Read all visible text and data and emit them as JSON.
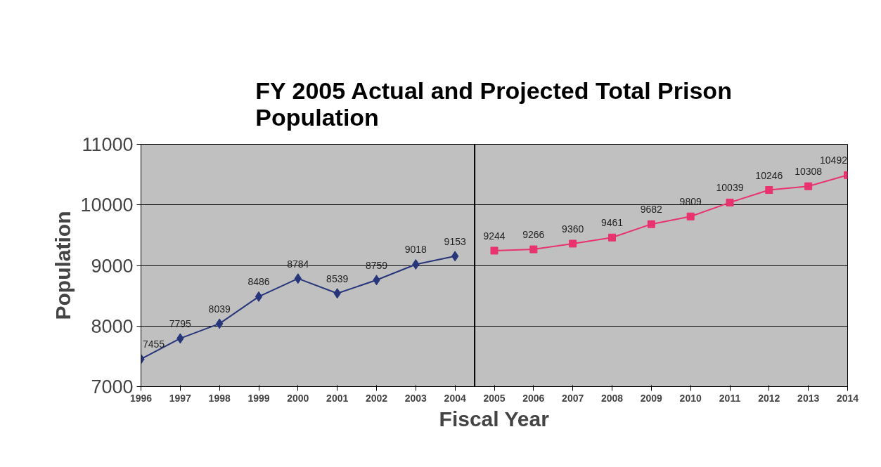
{
  "chart_data": {
    "type": "line",
    "title": "FY 2005 Actual and Projected Total Prison Population",
    "xlabel": "Fiscal Year",
    "ylabel": "Population",
    "series": [
      {
        "color": "#27357a",
        "marker": "diamond",
        "x": [
          1996,
          1997,
          1998,
          1999,
          2000,
          2001,
          2002,
          2003,
          2004
        ],
        "values": [
          7455,
          7795,
          8039,
          8486,
          8784,
          8539,
          8759,
          9018,
          9153
        ]
      },
      {
        "color": "#e8336e",
        "marker": "square",
        "x": [
          2005,
          2006,
          2007,
          2008,
          2009,
          2010,
          2011,
          2012,
          2013,
          2014
        ],
        "values": [
          9244,
          9266,
          9360,
          9461,
          9682,
          9809,
          10039,
          10246,
          10308,
          10492
        ]
      }
    ],
    "xlim": [
      1996,
      2014
    ],
    "xticks": [
      1996,
      1997,
      1998,
      1999,
      2000,
      2001,
      2002,
      2003,
      2004,
      2005,
      2006,
      2007,
      2008,
      2009,
      2010,
      2011,
      2012,
      2013,
      2014
    ],
    "ylim": [
      7000,
      11000
    ],
    "yticks": [
      7000,
      8000,
      9000,
      10000,
      11000
    ],
    "ref_lines": [
      {
        "axis": "x",
        "value": 2004.5,
        "color": "#000000"
      }
    ],
    "grid": "y",
    "data_labels": true,
    "line_style": "solid"
  }
}
